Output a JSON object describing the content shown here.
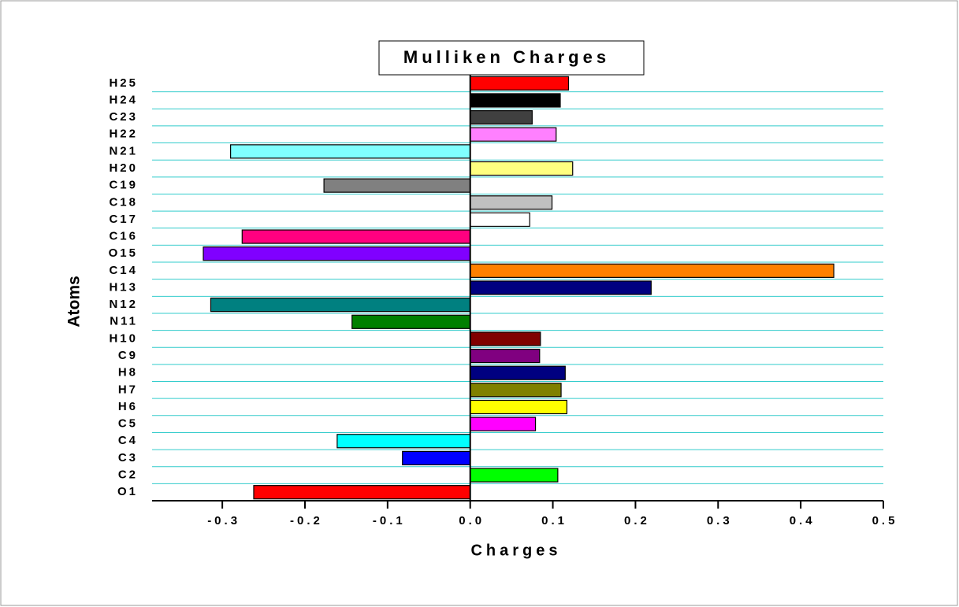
{
  "chart_data": {
    "type": "hbar",
    "title": "Mulliken Charges",
    "xlabel": "Charges",
    "ylabel": "Atoms",
    "categories": [
      "O1",
      "C2",
      "C3",
      "C4",
      "C5",
      "H6",
      "H7",
      "H8",
      "C9",
      "H10",
      "N11",
      "N12",
      "H13",
      "C14",
      "O15",
      "C16",
      "C17",
      "C18",
      "C19",
      "H20",
      "N21",
      "H22",
      "C23",
      "H24",
      "H25"
    ],
    "values": [
      -0.262,
      0.106,
      -0.082,
      -0.161,
      0.079,
      0.117,
      0.11,
      0.115,
      0.084,
      0.085,
      -0.143,
      -0.314,
      0.219,
      0.44,
      -0.323,
      -0.276,
      0.072,
      0.099,
      -0.177,
      0.124,
      -0.29,
      0.104,
      0.075,
      0.109,
      0.119
    ],
    "colors": [
      "#ff0000",
      "#00ff00",
      "#0000ff",
      "#00ffff",
      "#ff00ff",
      "#ffff00",
      "#808000",
      "#000080",
      "#800080",
      "#800000",
      "#008000",
      "#008080",
      "#000080",
      "#ff8000",
      "#8000ff",
      "#ff0080",
      "#ffffff",
      "#c0c0c0",
      "#808080",
      "#ffff80",
      "#80ffff",
      "#ff80ff",
      "#404040",
      "#000000",
      "#ff0000"
    ],
    "xlim": [
      -0.385,
      0.5
    ],
    "xticks": [
      -0.3,
      -0.2,
      -0.1,
      {
        "value": 0,
        "label": "0.0"
      },
      0.1,
      0.2,
      0.3,
      0.4,
      0.5
    ],
    "grid": true,
    "grid_color": "#33cccc"
  }
}
